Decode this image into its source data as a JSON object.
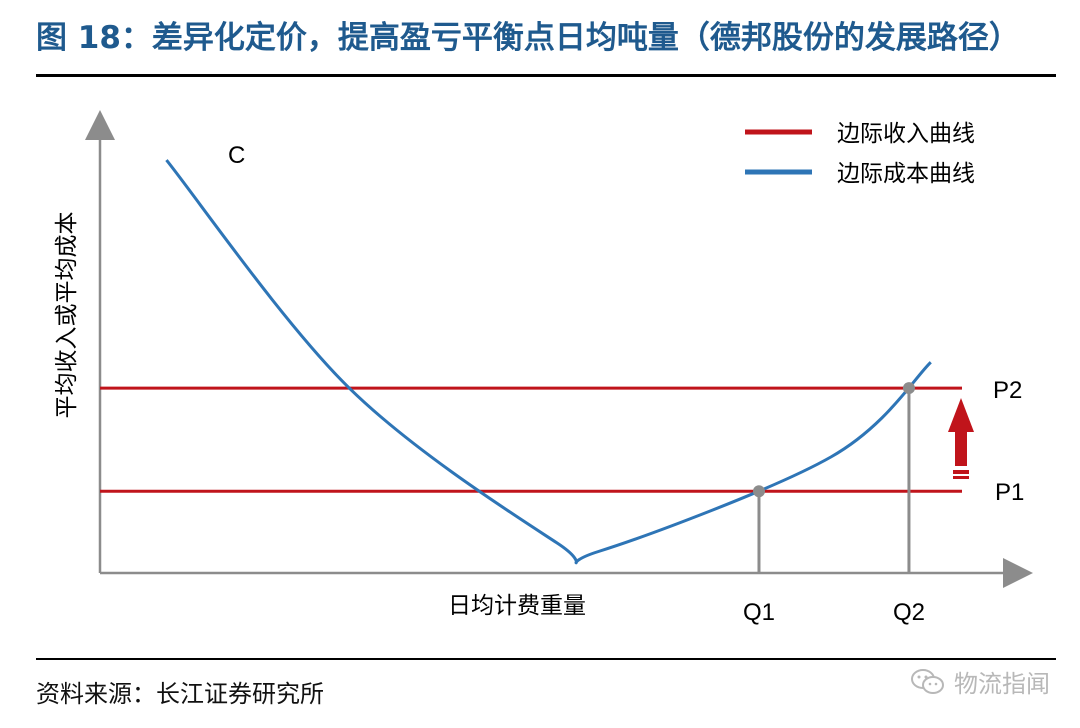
{
  "figure": {
    "title": "图 18：差异化定价，提高盈亏平衡点日均吨量（德邦股份的发展路径）",
    "source": "资料来源：长江证券研究所",
    "watermark": "物流指闻"
  },
  "colors": {
    "title": "#1f5a8e",
    "revenue": "#c0141b",
    "cost": "#2e75b6",
    "axis": "#8c8c8c",
    "marker": "#8c8c8c",
    "arrow": "#c0141b"
  },
  "chart_data": {
    "type": "line",
    "ylabel": "平均收入或平均成本",
    "xlabel": "日均计费重量",
    "grid": false,
    "legend": {
      "placement": "top-right",
      "items": [
        {
          "label": "边际收入曲线",
          "color": "#c0141b"
        },
        {
          "label": "边际成本曲线",
          "color": "#2e75b6"
        }
      ]
    },
    "curve_label": "C",
    "series": [
      {
        "name": "边际成本曲线",
        "points": [
          [
            0.08,
            0.96
          ],
          [
            0.3,
            0.43
          ],
          [
            0.55,
            0.07
          ],
          [
            0.6,
            0.05
          ],
          [
            0.88,
            0.27
          ],
          [
            1.0,
            0.49
          ]
        ]
      },
      {
        "name": "边际收入曲线",
        "y": 0.19,
        "label": "P1"
      },
      {
        "name": "边际收入曲线",
        "y": 0.43,
        "label": "P2"
      }
    ],
    "markers": [
      {
        "label": "Q1",
        "level": "P1"
      },
      {
        "label": "Q2",
        "level": "P2"
      }
    ],
    "annotation": "price increase from P1 to P2"
  }
}
